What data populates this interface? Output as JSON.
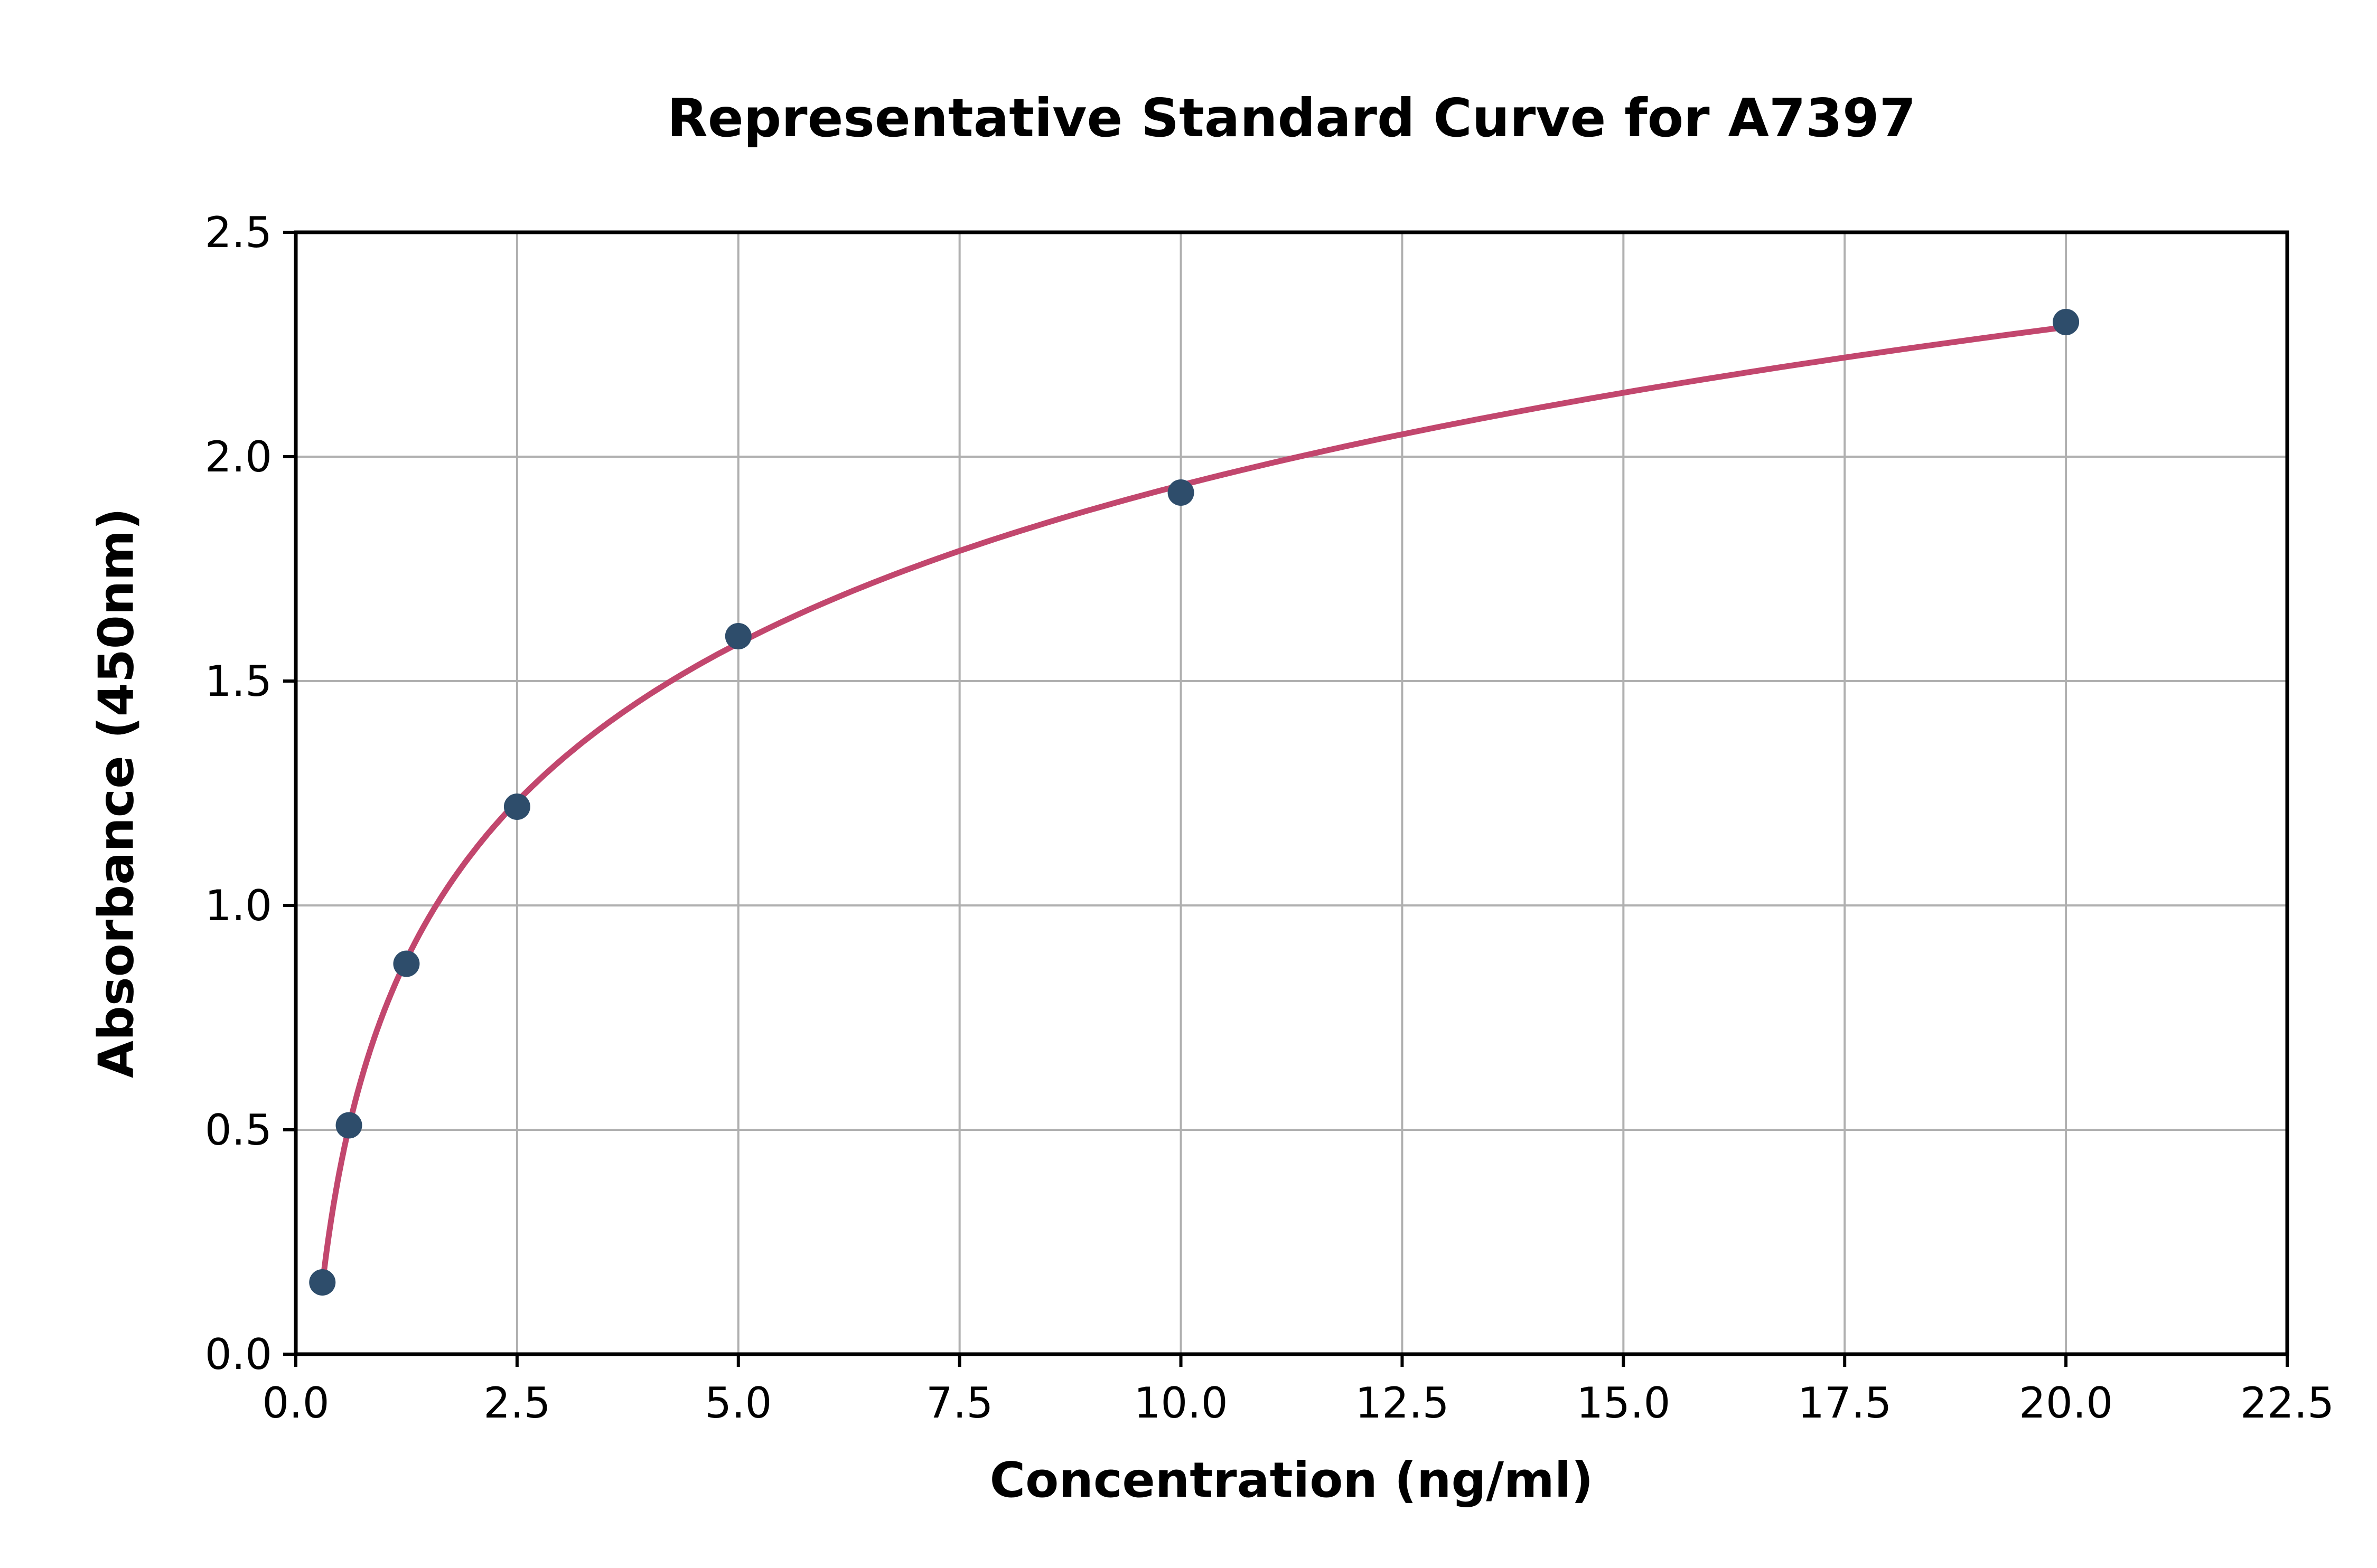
{
  "chart_data": {
    "type": "scatter",
    "title": "Representative Standard Curve for A7397",
    "xlabel": "Concentration (ng/ml)",
    "ylabel": "Absorbance (450nm)",
    "xlim": [
      0,
      22.5
    ],
    "ylim": [
      0,
      2.5
    ],
    "x_ticks": [
      0.0,
      2.5,
      5.0,
      7.5,
      10.0,
      12.5,
      15.0,
      17.5,
      20.0,
      22.5
    ],
    "y_ticks": [
      0.0,
      0.5,
      1.0,
      1.5,
      2.0,
      2.5
    ],
    "grid": true,
    "legend_position": "none",
    "points": {
      "x": [
        0.3,
        0.6,
        1.25,
        2.5,
        5.0,
        10.0,
        20.0
      ],
      "y": [
        0.16,
        0.51,
        0.87,
        1.22,
        1.6,
        1.92,
        2.3
      ]
    },
    "curve_fit": "logarithmic",
    "marker_color": "#2e4d6b",
    "line_color": "#c2476e",
    "grid_color": "#b0b0b0",
    "axis_color": "#000000"
  }
}
